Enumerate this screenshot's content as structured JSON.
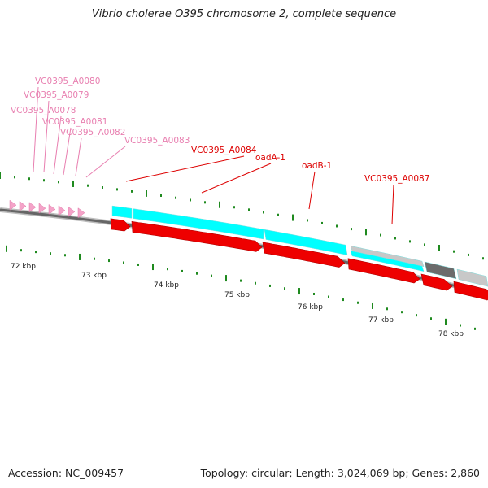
{
  "title": "Vibrio cholerae O395 chromosome 2, complete sequence",
  "footer": {
    "accession": "Accession: NC_009457",
    "summary": "Topology: circular; Length: 3,024,069 bp; Genes: 2,860"
  },
  "colors": {
    "pink_gene": "#f4a3c8",
    "pink_label": "#e87fb0",
    "red_gene": "#ee0000",
    "red_label": "#dd0000",
    "cyan_feature": "#00ffff",
    "gray_feature": "#c8c8c8",
    "dark_gray_feature": "#6b6b6b",
    "tick_green": "#1f8a1f",
    "backbone": "#666666"
  },
  "scale_labels": [
    "72 kbp",
    "73 kbp",
    "74 kbp",
    "75 kbp",
    "76 kbp",
    "77 kbp",
    "78 kbp"
  ],
  "gene_labels": [
    {
      "text": "VC0395_A0080",
      "group": "pink"
    },
    {
      "text": "VC0395_A0079",
      "group": "pink"
    },
    {
      "text": "VC0395_A0078",
      "group": "pink"
    },
    {
      "text": "VC0395_A0081",
      "group": "pink"
    },
    {
      "text": "VC0395_A0082",
      "group": "pink"
    },
    {
      "text": "VC0395_A0083",
      "group": "pink"
    },
    {
      "text": "VC0395_A0084",
      "group": "red"
    },
    {
      "text": "oadA-1",
      "group": "red"
    },
    {
      "text": "oadB-1",
      "group": "red"
    },
    {
      "text": "VC0395_A0087",
      "group": "red"
    }
  ]
}
